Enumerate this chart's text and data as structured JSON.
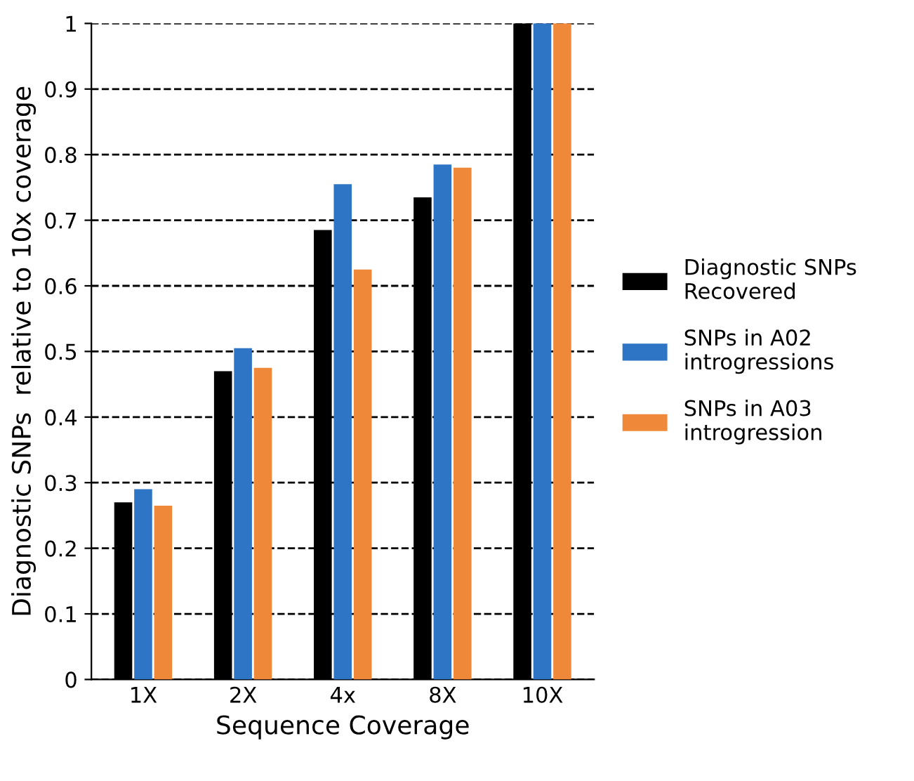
{
  "chart_data": {
    "type": "bar",
    "xlabel": "Sequence Coverage",
    "ylabel": "Diagnostic SNPs  relative to 10x coverage",
    "categories": [
      "1X",
      "2X",
      "4x",
      "8X",
      "10X"
    ],
    "series": [
      {
        "name": "Diagnostic SNPs\nRecovered",
        "color": "#000000",
        "values": [
          0.27,
          0.47,
          0.685,
          0.735,
          1
        ]
      },
      {
        "name": "SNPs in A02\nintrogressions",
        "color": "#2e75c6",
        "values": [
          0.29,
          0.505,
          0.755,
          0.785,
          1
        ]
      },
      {
        "name": "SNPs in A03\nintrogression",
        "color": "#f0883a",
        "values": [
          0.265,
          0.475,
          0.625,
          0.78,
          1
        ]
      }
    ],
    "ylim": [
      0,
      1
    ],
    "yticks": [
      0,
      0.1,
      0.2,
      0.3,
      0.4,
      0.5,
      0.6,
      0.7,
      0.8,
      0.9,
      1
    ],
    "grid": "y",
    "legend": "right"
  }
}
